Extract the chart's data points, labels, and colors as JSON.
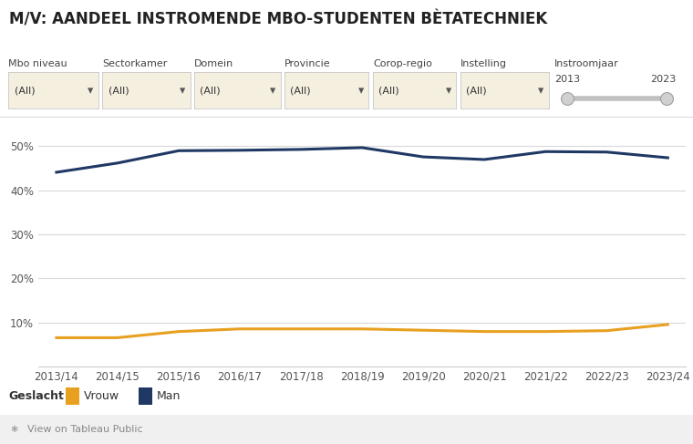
{
  "title": "M/V: AANDEEL INSTROMENDE MBO-STUDENTEN BÈTATECHNIEK",
  "x_labels": [
    "2013/14",
    "2014/15",
    "2015/16",
    "2016/17",
    "2017/18",
    "2018/19",
    "2019/20",
    "2020/21",
    "2021/22",
    "2022/23",
    "2023/24"
  ],
  "man_values": [
    0.441,
    0.462,
    0.49,
    0.491,
    0.493,
    0.497,
    0.476,
    0.47,
    0.488,
    0.487,
    0.474
  ],
  "vrouw_values": [
    0.065,
    0.065,
    0.079,
    0.085,
    0.085,
    0.085,
    0.082,
    0.079,
    0.079,
    0.081,
    0.095
  ],
  "man_color": "#1f3864",
  "vrouw_color": "#e8a020",
  "line_width": 2.2,
  "ylim": [
    0.0,
    0.55
  ],
  "yticks": [
    0.1,
    0.2,
    0.3,
    0.4,
    0.5
  ],
  "ytick_labels": [
    "10%",
    "20%",
    "30%",
    "40%",
    "50%"
  ],
  "background_color": "#ffffff",
  "plot_bg_color": "#ffffff",
  "grid_color": "#d9d9d9",
  "title_fontsize": 12,
  "tick_fontsize": 8.5,
  "legend_label_man": "Man",
  "legend_label_vrouw": "Vrouw",
  "legend_title": "Geslacht",
  "filter_labels": [
    "Mbo niveau",
    "Sectorkamer",
    "Domein",
    "Provincie",
    "Corop-regio",
    "Instelling",
    "Instroomjaar"
  ],
  "footer_text": "View on Tableau Public",
  "dropdown_bg": "#f5efe0",
  "dropdown_border": "#c8c8c8"
}
